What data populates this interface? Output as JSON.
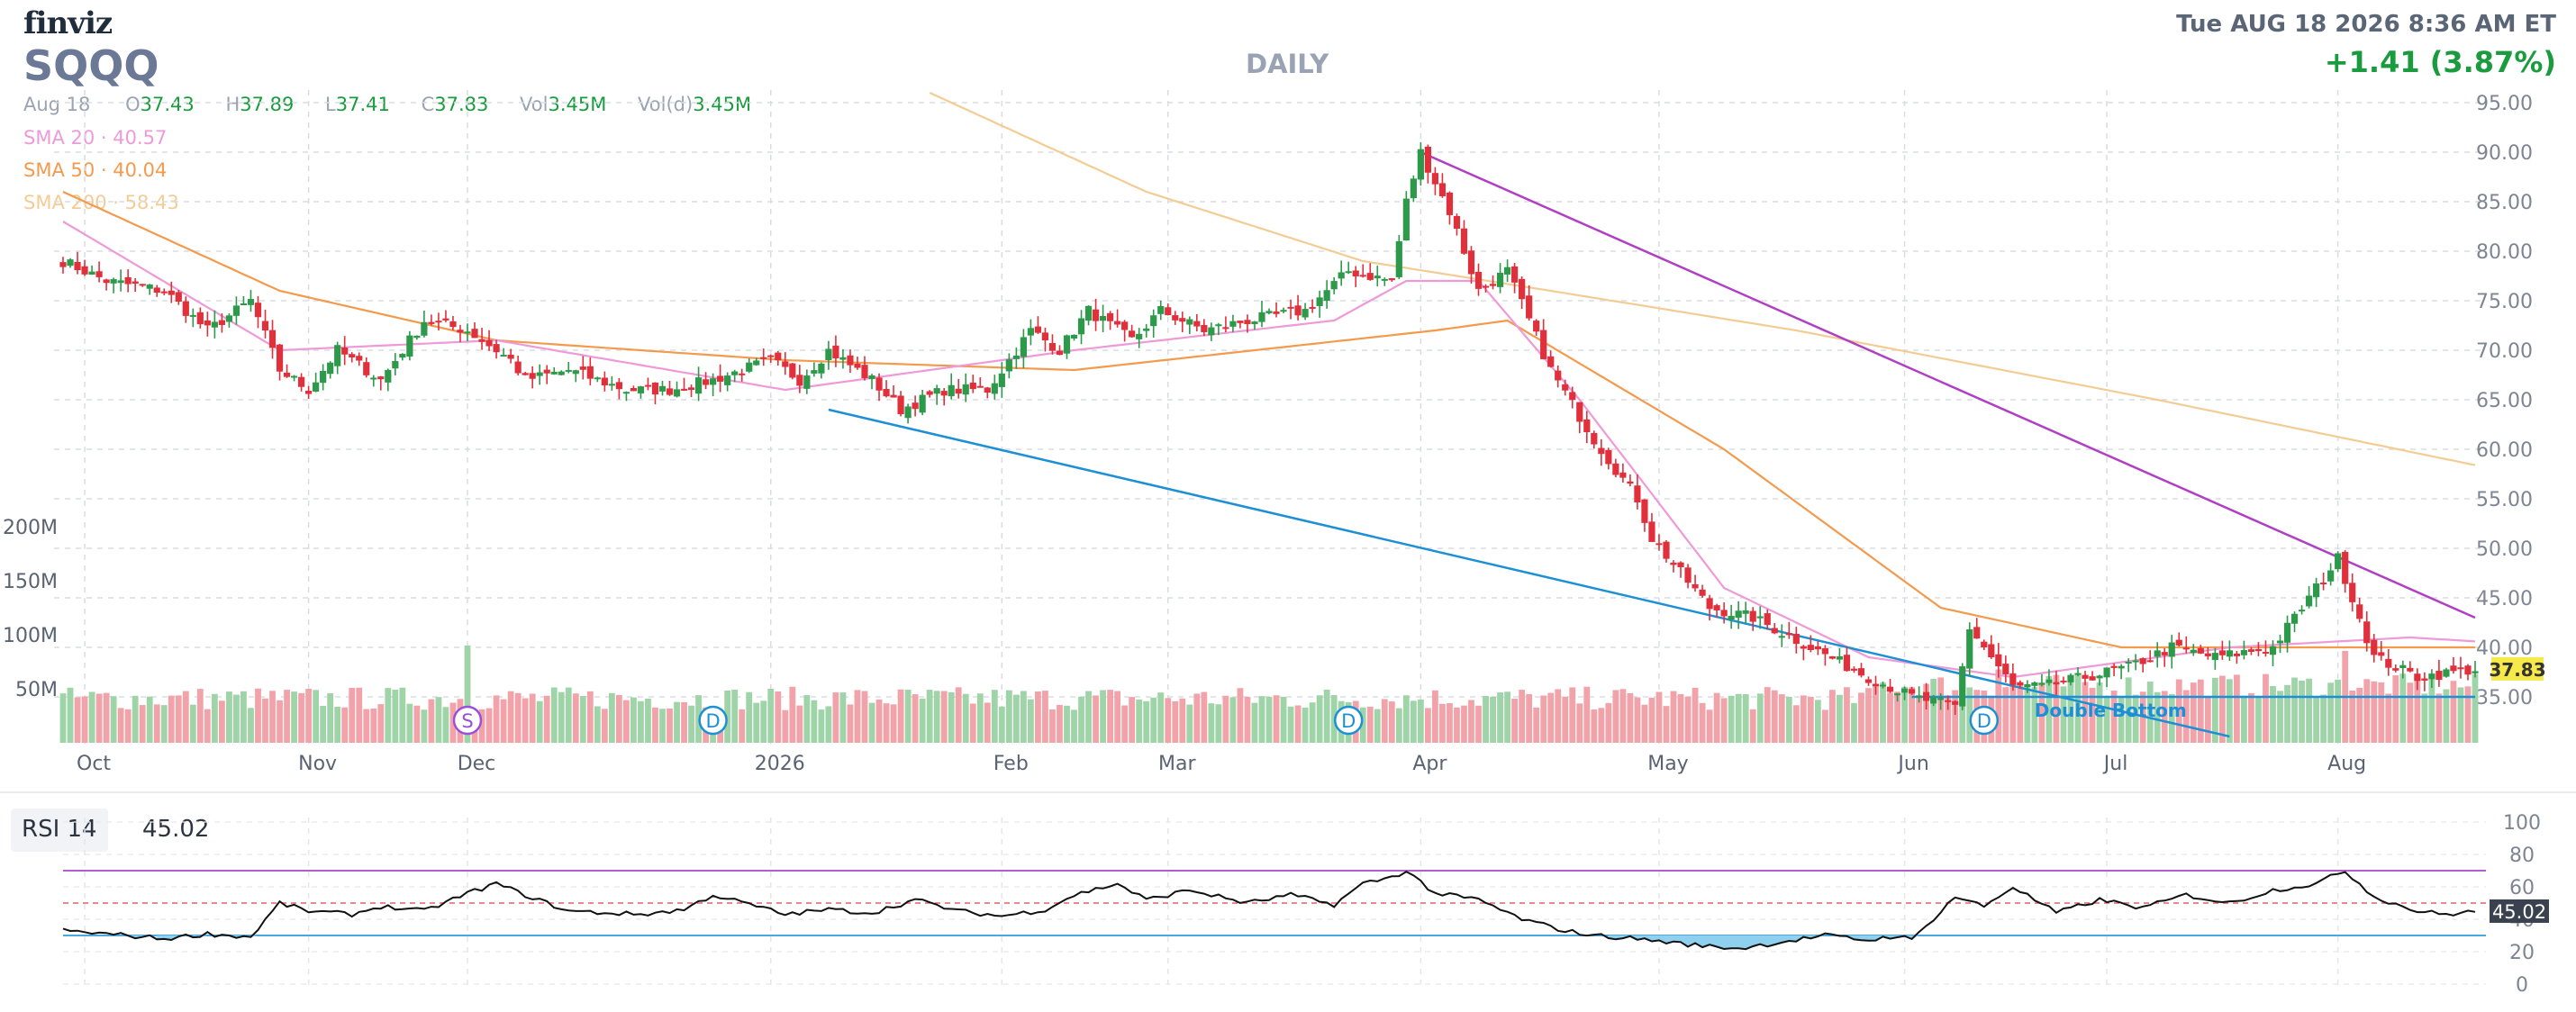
{
  "header": {
    "logo": "finviz",
    "ticker": "SQQQ",
    "timeframe": "DAILY",
    "datetime": "Tue AUG 18 2026 8:36 AM ET",
    "change": "+1.41 (3.87%)"
  },
  "ohlc": {
    "date": "Aug 18",
    "open_label": "O",
    "open": "37.43",
    "high_label": "H",
    "high": "37.89",
    "low_label": "L",
    "low": "37.41",
    "close_label": "C",
    "close": "37.83",
    "vol_label": "Vol",
    "vol": "3.45M",
    "vold_label": "Vol(d)",
    "vold": "3.45M"
  },
  "sma": [
    {
      "label": "SMA 20",
      "value": "40.57",
      "color": "#ee9ad8"
    },
    {
      "label": "SMA 50",
      "value": "40.04",
      "color": "#f39a4d"
    },
    {
      "label": "SMA 200",
      "value": "58.43",
      "color": "#f3cc94"
    }
  ],
  "colors": {
    "up": "#2c9a4a",
    "down": "#e0303c",
    "vol_up": "#9fd3a8",
    "vol_down": "#f2a3aa",
    "trend_down": "#b03fc4",
    "trend_up": "#1c8fd6",
    "rsi": "#111111"
  },
  "chart_data": [
    {
      "type": "line",
      "chart": "price",
      "y_ticks": [
        "95.00",
        "90.00",
        "85.00",
        "80.00",
        "75.00",
        "70.00",
        "65.00",
        "60.00",
        "55.00",
        "50.00",
        "45.00",
        "40.00",
        "35.00"
      ],
      "ylim": [
        31,
        96
      ],
      "x_labels": [
        "Oct",
        "Nov",
        "Dec",
        "2026",
        "Feb",
        "Mar",
        "Apr",
        "May",
        "Jun",
        "Jul",
        "Aug"
      ],
      "x_label_days": [
        3,
        34,
        56,
        98,
        130,
        153,
        188,
        221,
        255,
        283,
        315
      ],
      "last_price": "37.83",
      "anchors": {
        "days": [
          0,
          6,
          14,
          20,
          26,
          30,
          34,
          38,
          44,
          50,
          56,
          60,
          62,
          64,
          70,
          78,
          84,
          90,
          98,
          102,
          106,
          112,
          116,
          122,
          128,
          134,
          138,
          142,
          148,
          152,
          158,
          164,
          172,
          178,
          184,
          186,
          188,
          192,
          196,
          200,
          206,
          212,
          218,
          220,
          228,
          234,
          242,
          250,
          256,
          262,
          264,
          270,
          274,
          280,
          286,
          292,
          298,
          306,
          312,
          315,
          318,
          320,
          326,
          334
        ],
        "close": [
          79,
          77,
          76,
          72,
          75,
          68,
          66,
          70,
          67,
          73,
          72,
          70,
          69,
          67,
          68,
          66,
          66,
          67,
          69,
          67,
          70,
          67,
          64,
          66,
          66,
          72,
          70,
          74,
          71,
          74,
          72,
          73,
          74,
          78,
          77,
          85,
          90,
          84,
          76,
          78,
          68,
          61,
          55,
          51,
          44,
          43,
          40,
          37,
          35,
          34,
          42,
          36,
          36,
          37,
          38,
          40,
          39,
          40,
          46,
          49,
          43,
          39,
          37,
          37.8
        ]
      },
      "sma20_anchors": {
        "days": [
          0,
          30,
          60,
          100,
          140,
          176,
          186,
          196,
          210,
          230,
          250,
          270,
          300,
          325,
          334
        ],
        "values": [
          83,
          70,
          71,
          66,
          70,
          73,
          77,
          77,
          65,
          46,
          39,
          37,
          40,
          41,
          40.6
        ]
      },
      "sma50_anchors": {
        "days": [
          0,
          30,
          60,
          100,
          140,
          190,
          200,
          230,
          260,
          285,
          310,
          334
        ],
        "values": [
          86,
          76,
          71,
          69,
          68,
          72,
          73,
          60,
          44,
          40,
          40,
          40
        ]
      },
      "sma200_anchors": {
        "days": [
          120,
          150,
          180,
          206,
          240,
          290,
          334
        ],
        "values": [
          96,
          86,
          79,
          76,
          72,
          65,
          58.4
        ]
      },
      "trendlines": [
        {
          "name": "descending-resistance",
          "from": [
            188,
            90
          ],
          "to": [
            334,
            43
          ]
        },
        {
          "name": "support-line",
          "from": [
            106,
            64
          ],
          "to": [
            300,
            31
          ]
        },
        {
          "name": "double-bottom-level",
          "from": [
            256,
            35
          ],
          "to": [
            334,
            35
          ]
        }
      ],
      "pattern_label": "Double Bottom"
    },
    {
      "type": "bar",
      "chart": "volume",
      "y_ticks": [
        "200M",
        "150M",
        "100M",
        "50M"
      ],
      "ylim": [
        0,
        210
      ],
      "markers": [
        {
          "letter": "S",
          "day": 56,
          "color": "#9a4fd8"
        },
        {
          "letter": "D",
          "day": 90,
          "color": "#1c8fd6"
        },
        {
          "letter": "D",
          "day": 178,
          "color": "#1c8fd6"
        },
        {
          "letter": "D",
          "day": 266,
          "color": "#1c8fd6"
        }
      ]
    },
    {
      "type": "line",
      "chart": "rsi",
      "label": "RSI 14",
      "value": "45.02",
      "y_ticks": [
        "100",
        "80",
        "60",
        "40",
        "20",
        "0"
      ],
      "ylim": [
        0,
        100
      ],
      "levels": [
        70,
        50,
        30
      ],
      "anchors": {
        "days": [
          0,
          6,
          14,
          20,
          26,
          30,
          34,
          40,
          44,
          50,
          56,
          60,
          64,
          70,
          80,
          86,
          90,
          96,
          100,
          106,
          112,
          118,
          124,
          130,
          136,
          140,
          146,
          150,
          156,
          164,
          170,
          176,
          180,
          184,
          186,
          190,
          196,
          202,
          208,
          212,
          218,
          222,
          226,
          232,
          238,
          244,
          250,
          254,
          256,
          262,
          266,
          270,
          276,
          282,
          288,
          294,
          300,
          306,
          312,
          316,
          320,
          326,
          330,
          334
        ],
        "values": [
          33,
          31,
          28,
          31,
          29,
          50,
          45,
          43,
          48,
          45,
          56,
          62,
          55,
          45,
          43,
          46,
          55,
          48,
          43,
          46,
          44,
          52,
          45,
          42,
          46,
          55,
          62,
          52,
          58,
          50,
          55,
          49,
          62,
          66,
          70,
          56,
          52,
          40,
          33,
          30,
          28,
          26,
          24,
          22,
          26,
          30,
          27,
          30,
          27,
          54,
          48,
          60,
          44,
          52,
          47,
          55,
          50,
          58,
          62,
          70,
          54,
          45,
          43,
          45
        ]
      }
    }
  ]
}
